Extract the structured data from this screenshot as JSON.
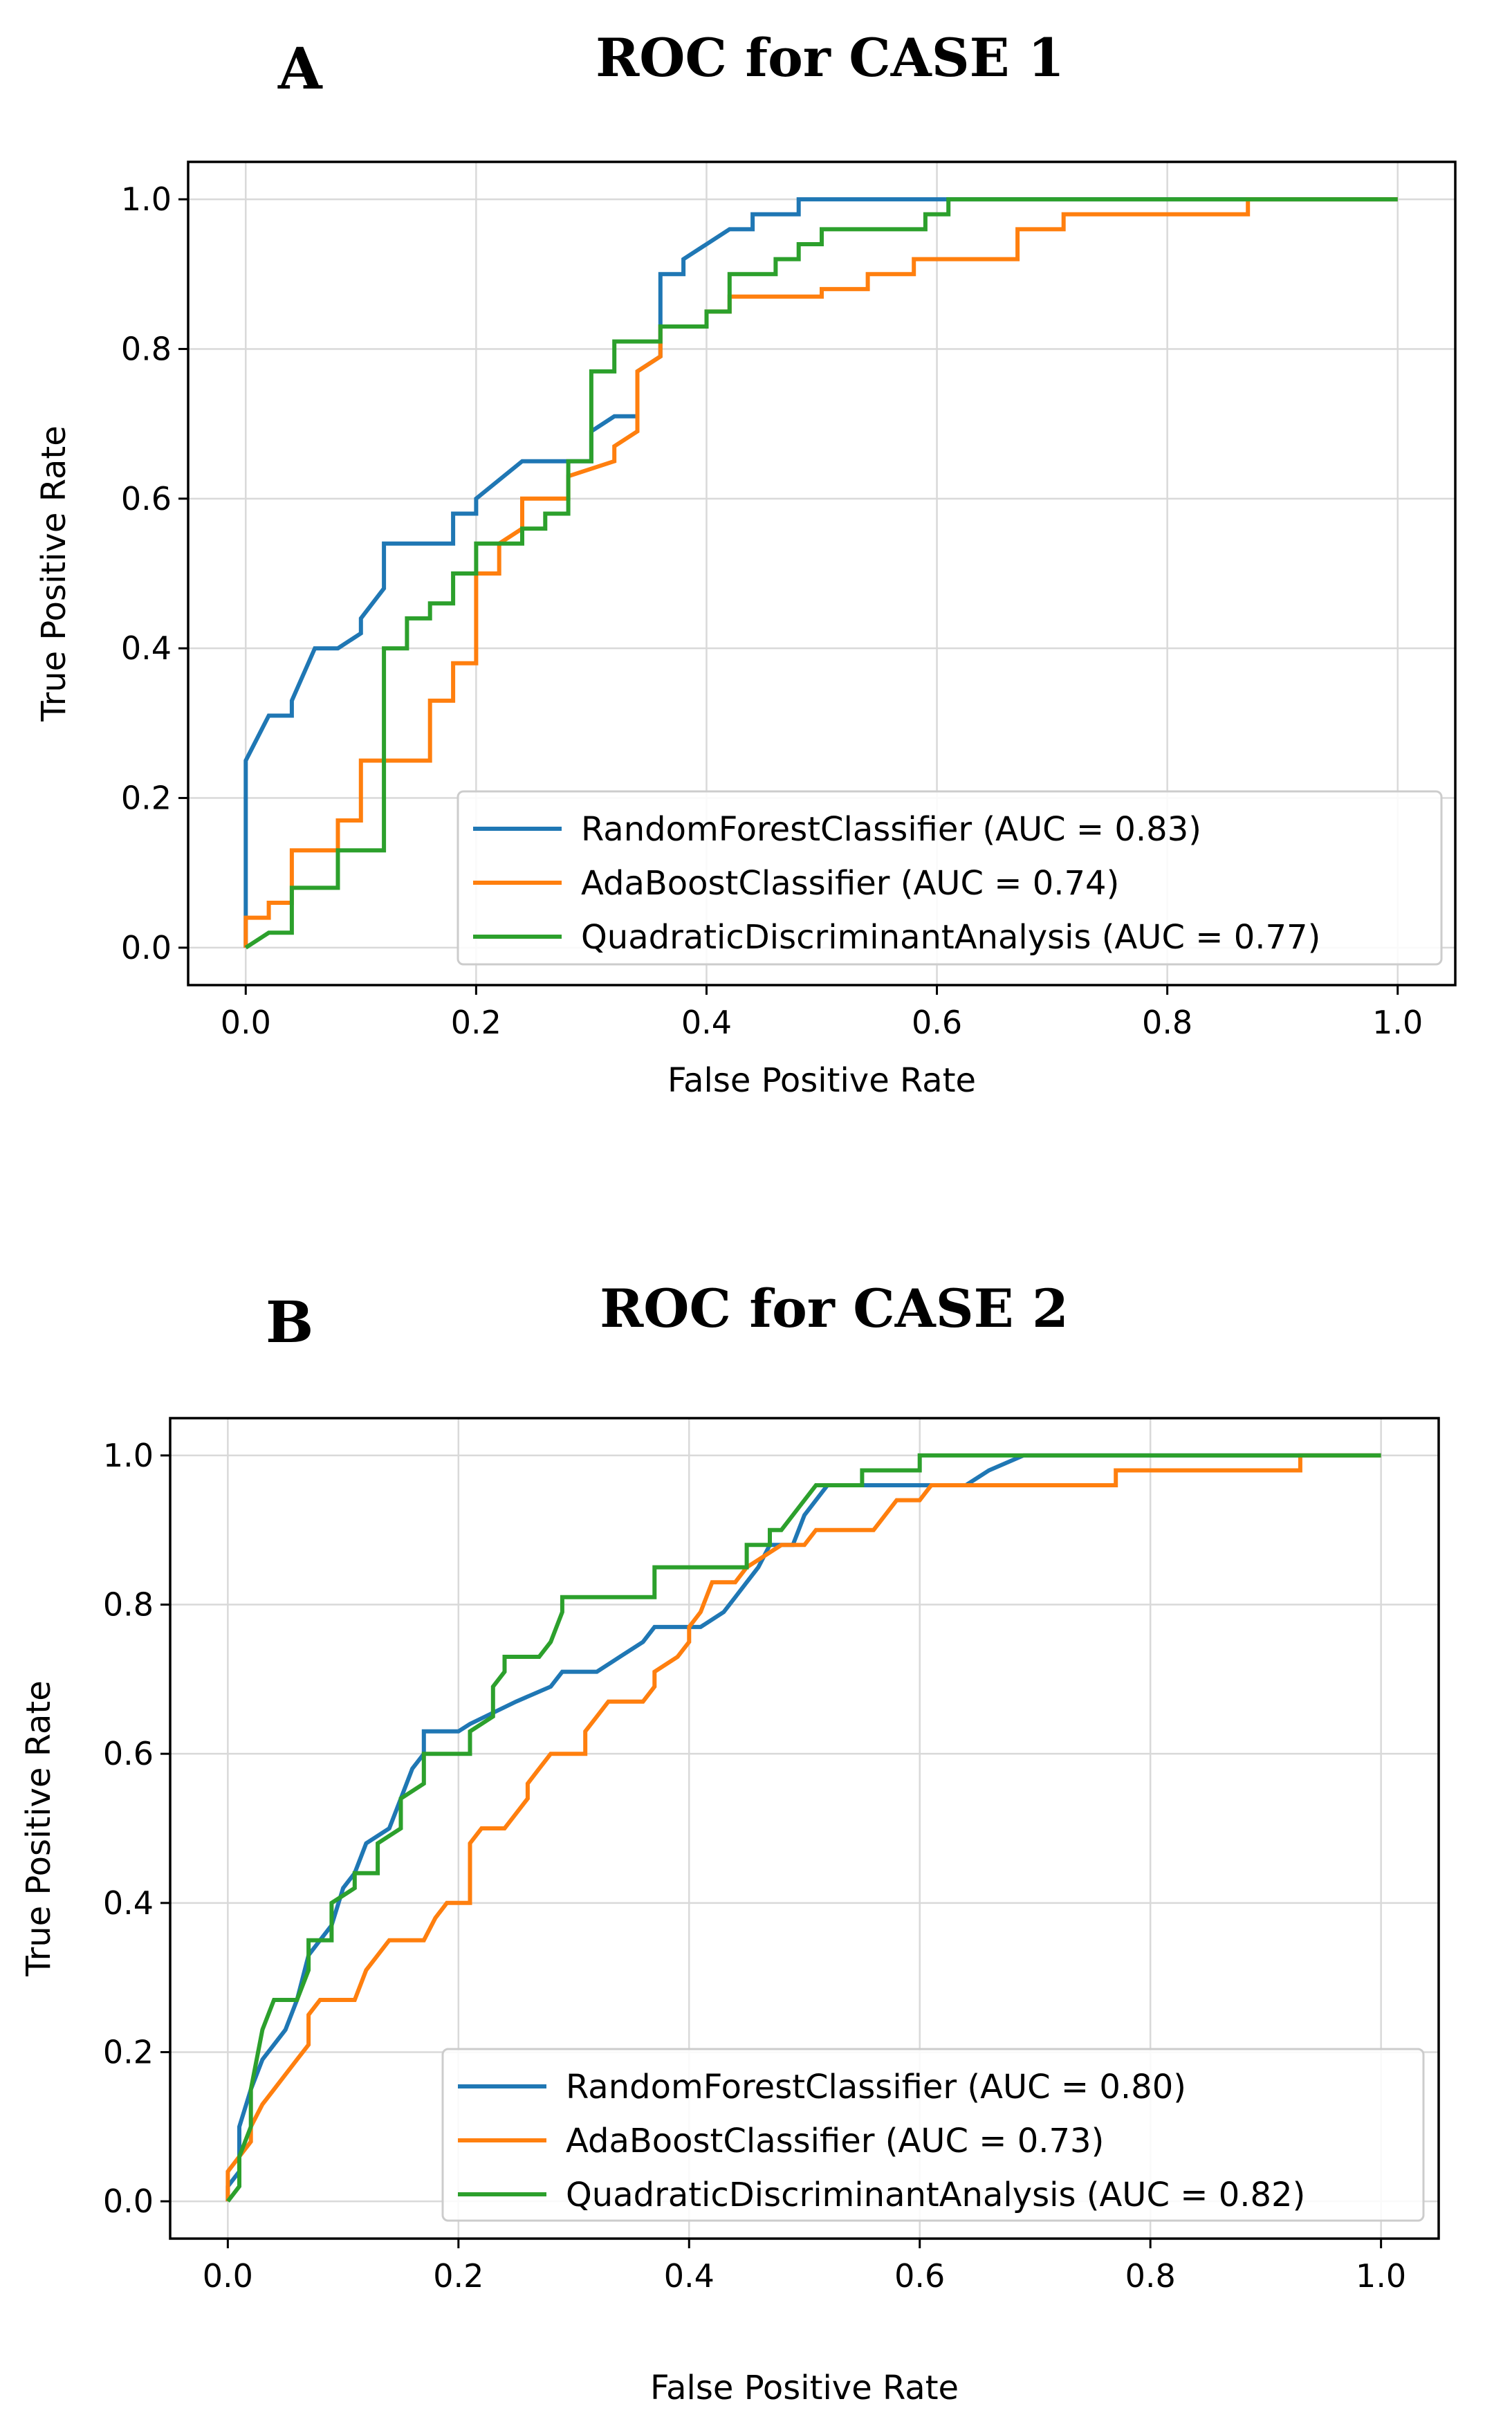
{
  "chart_data": [
    {
      "type": "line",
      "panel_label": "A",
      "title": "ROC for CASE 1",
      "xlabel": "False Positive Rate",
      "ylabel": "True Positive Rate",
      "xlim": [
        -0.05,
        1.05
      ],
      "ylim": [
        -0.05,
        1.05
      ],
      "xticks": [
        "0.0",
        "0.2",
        "0.4",
        "0.6",
        "0.8",
        "1.0"
      ],
      "yticks": [
        "0.0",
        "0.2",
        "0.4",
        "0.6",
        "0.8",
        "1.0"
      ],
      "grid": true,
      "legend_position": "lower-right",
      "series": [
        {
          "name": "RandomForestClassifier (AUC = 0.83)",
          "color": "#1f77b4",
          "points": [
            [
              0,
              0
            ],
            [
              0,
              0.25
            ],
            [
              0.02,
              0.31
            ],
            [
              0.04,
              0.31
            ],
            [
              0.04,
              0.33
            ],
            [
              0.06,
              0.4
            ],
            [
              0.08,
              0.4
            ],
            [
              0.1,
              0.42
            ],
            [
              0.1,
              0.44
            ],
            [
              0.12,
              0.48
            ],
            [
              0.12,
              0.54
            ],
            [
              0.18,
              0.54
            ],
            [
              0.18,
              0.58
            ],
            [
              0.2,
              0.58
            ],
            [
              0.2,
              0.6
            ],
            [
              0.24,
              0.65
            ],
            [
              0.3,
              0.65
            ],
            [
              0.3,
              0.69
            ],
            [
              0.32,
              0.71
            ],
            [
              0.34,
              0.71
            ],
            [
              0.34,
              0.77
            ],
            [
              0.36,
              0.79
            ],
            [
              0.36,
              0.9
            ],
            [
              0.38,
              0.9
            ],
            [
              0.38,
              0.92
            ],
            [
              0.42,
              0.96
            ],
            [
              0.44,
              0.96
            ],
            [
              0.44,
              0.98
            ],
            [
              0.48,
              0.98
            ],
            [
              0.48,
              1.0
            ],
            [
              0.5,
              1.0
            ],
            [
              0.61,
              1.0
            ],
            [
              1.0,
              1.0
            ]
          ]
        },
        {
          "name": "AdaBoostClassifier (AUC = 0.74)",
          "color": "#ff7f0e",
          "points": [
            [
              0,
              0
            ],
            [
              0,
              0.04
            ],
            [
              0.02,
              0.04
            ],
            [
              0.02,
              0.06
            ],
            [
              0.04,
              0.06
            ],
            [
              0.04,
              0.13
            ],
            [
              0.08,
              0.13
            ],
            [
              0.08,
              0.17
            ],
            [
              0.1,
              0.17
            ],
            [
              0.1,
              0.25
            ],
            [
              0.16,
              0.25
            ],
            [
              0.16,
              0.33
            ],
            [
              0.18,
              0.33
            ],
            [
              0.18,
              0.38
            ],
            [
              0.2,
              0.38
            ],
            [
              0.2,
              0.5
            ],
            [
              0.22,
              0.5
            ],
            [
              0.22,
              0.54
            ],
            [
              0.24,
              0.56
            ],
            [
              0.24,
              0.6
            ],
            [
              0.28,
              0.6
            ],
            [
              0.28,
              0.63
            ],
            [
              0.32,
              0.65
            ],
            [
              0.32,
              0.67
            ],
            [
              0.34,
              0.69
            ],
            [
              0.34,
              0.77
            ],
            [
              0.36,
              0.79
            ],
            [
              0.36,
              0.83
            ],
            [
              0.4,
              0.83
            ],
            [
              0.4,
              0.85
            ],
            [
              0.42,
              0.85
            ],
            [
              0.42,
              0.87
            ],
            [
              0.5,
              0.87
            ],
            [
              0.5,
              0.88
            ],
            [
              0.54,
              0.88
            ],
            [
              0.54,
              0.9
            ],
            [
              0.58,
              0.9
            ],
            [
              0.58,
              0.92
            ],
            [
              0.67,
              0.92
            ],
            [
              0.67,
              0.96
            ],
            [
              0.71,
              0.96
            ],
            [
              0.71,
              0.98
            ],
            [
              0.87,
              0.98
            ],
            [
              0.87,
              1.0
            ],
            [
              1.0,
              1.0
            ]
          ]
        },
        {
          "name": "QuadraticDiscriminantAnalysis (AUC = 0.77)",
          "color": "#2ca02c",
          "points": [
            [
              0,
              0
            ],
            [
              0.02,
              0.02
            ],
            [
              0.04,
              0.02
            ],
            [
              0.04,
              0.08
            ],
            [
              0.08,
              0.08
            ],
            [
              0.08,
              0.13
            ],
            [
              0.12,
              0.13
            ],
            [
              0.12,
              0.4
            ],
            [
              0.14,
              0.4
            ],
            [
              0.14,
              0.44
            ],
            [
              0.16,
              0.44
            ],
            [
              0.16,
              0.46
            ],
            [
              0.18,
              0.46
            ],
            [
              0.18,
              0.5
            ],
            [
              0.2,
              0.5
            ],
            [
              0.2,
              0.54
            ],
            [
              0.24,
              0.54
            ],
            [
              0.24,
              0.56
            ],
            [
              0.26,
              0.56
            ],
            [
              0.26,
              0.58
            ],
            [
              0.28,
              0.58
            ],
            [
              0.28,
              0.65
            ],
            [
              0.3,
              0.65
            ],
            [
              0.3,
              0.77
            ],
            [
              0.32,
              0.77
            ],
            [
              0.32,
              0.81
            ],
            [
              0.36,
              0.81
            ],
            [
              0.36,
              0.83
            ],
            [
              0.4,
              0.83
            ],
            [
              0.4,
              0.85
            ],
            [
              0.42,
              0.85
            ],
            [
              0.42,
              0.9
            ],
            [
              0.46,
              0.9
            ],
            [
              0.46,
              0.92
            ],
            [
              0.48,
              0.92
            ],
            [
              0.48,
              0.94
            ],
            [
              0.5,
              0.94
            ],
            [
              0.5,
              0.96
            ],
            [
              0.59,
              0.96
            ],
            [
              0.59,
              0.98
            ],
            [
              0.61,
              0.98
            ],
            [
              0.61,
              1.0
            ],
            [
              1.0,
              1.0
            ]
          ]
        }
      ]
    },
    {
      "type": "line",
      "panel_label": "B",
      "title": "ROC for CASE 2",
      "xlabel": "False Positive Rate",
      "ylabel": "True Positive Rate",
      "xlim": [
        -0.05,
        1.05
      ],
      "ylim": [
        -0.05,
        1.05
      ],
      "xticks": [
        "0.0",
        "0.2",
        "0.4",
        "0.6",
        "0.8",
        "1.0"
      ],
      "yticks": [
        "0.0",
        "0.2",
        "0.4",
        "0.6",
        "0.8",
        "1.0"
      ],
      "grid": true,
      "legend_position": "lower-right",
      "series": [
        {
          "name": "RandomForestClassifier (AUC = 0.80)",
          "color": "#1f77b4",
          "points": [
            [
              0,
              0
            ],
            [
              0,
              0.02
            ],
            [
              0.01,
              0.04
            ],
            [
              0.01,
              0.1
            ],
            [
              0.02,
              0.15
            ],
            [
              0.03,
              0.19
            ],
            [
              0.05,
              0.23
            ],
            [
              0.06,
              0.27
            ],
            [
              0.07,
              0.33
            ],
            [
              0.08,
              0.35
            ],
            [
              0.09,
              0.37
            ],
            [
              0.1,
              0.42
            ],
            [
              0.11,
              0.44
            ],
            [
              0.12,
              0.48
            ],
            [
              0.14,
              0.5
            ],
            [
              0.15,
              0.54
            ],
            [
              0.16,
              0.58
            ],
            [
              0.17,
              0.6
            ],
            [
              0.17,
              0.63
            ],
            [
              0.2,
              0.63
            ],
            [
              0.21,
              0.64
            ],
            [
              0.25,
              0.67
            ],
            [
              0.28,
              0.69
            ],
            [
              0.29,
              0.71
            ],
            [
              0.32,
              0.71
            ],
            [
              0.34,
              0.73
            ],
            [
              0.36,
              0.75
            ],
            [
              0.37,
              0.77
            ],
            [
              0.41,
              0.77
            ],
            [
              0.43,
              0.79
            ],
            [
              0.44,
              0.81
            ],
            [
              0.45,
              0.83
            ],
            [
              0.46,
              0.85
            ],
            [
              0.47,
              0.88
            ],
            [
              0.49,
              0.88
            ],
            [
              0.5,
              0.92
            ],
            [
              0.52,
              0.96
            ],
            [
              0.64,
              0.96
            ],
            [
              0.66,
              0.98
            ],
            [
              0.69,
              1.0
            ],
            [
              1.0,
              1.0
            ]
          ]
        },
        {
          "name": "AdaBoostClassifier (AUC = 0.73)",
          "color": "#ff7f0e",
          "points": [
            [
              0,
              0
            ],
            [
              0,
              0.04
            ],
            [
              0.01,
              0.06
            ],
            [
              0.02,
              0.08
            ],
            [
              0.02,
              0.1
            ],
            [
              0.03,
              0.13
            ],
            [
              0.04,
              0.15
            ],
            [
              0.05,
              0.17
            ],
            [
              0.06,
              0.19
            ],
            [
              0.07,
              0.21
            ],
            [
              0.07,
              0.25
            ],
            [
              0.08,
              0.27
            ],
            [
              0.11,
              0.27
            ],
            [
              0.12,
              0.31
            ],
            [
              0.13,
              0.33
            ],
            [
              0.14,
              0.35
            ],
            [
              0.17,
              0.35
            ],
            [
              0.18,
              0.38
            ],
            [
              0.19,
              0.4
            ],
            [
              0.21,
              0.4
            ],
            [
              0.21,
              0.44
            ],
            [
              0.21,
              0.48
            ],
            [
              0.22,
              0.5
            ],
            [
              0.24,
              0.5
            ],
            [
              0.25,
              0.52
            ],
            [
              0.26,
              0.54
            ],
            [
              0.26,
              0.56
            ],
            [
              0.27,
              0.58
            ],
            [
              0.28,
              0.6
            ],
            [
              0.31,
              0.6
            ],
            [
              0.31,
              0.63
            ],
            [
              0.32,
              0.65
            ],
            [
              0.33,
              0.67
            ],
            [
              0.36,
              0.67
            ],
            [
              0.37,
              0.69
            ],
            [
              0.37,
              0.71
            ],
            [
              0.39,
              0.73
            ],
            [
              0.4,
              0.75
            ],
            [
              0.4,
              0.77
            ],
            [
              0.41,
              0.79
            ],
            [
              0.42,
              0.83
            ],
            [
              0.44,
              0.83
            ],
            [
              0.45,
              0.85
            ],
            [
              0.46,
              0.86
            ],
            [
              0.48,
              0.88
            ],
            [
              0.5,
              0.88
            ],
            [
              0.51,
              0.9
            ],
            [
              0.56,
              0.9
            ],
            [
              0.57,
              0.92
            ],
            [
              0.58,
              0.94
            ],
            [
              0.6,
              0.94
            ],
            [
              0.61,
              0.96
            ],
            [
              0.77,
              0.96
            ],
            [
              0.77,
              0.98
            ],
            [
              0.93,
              0.98
            ],
            [
              0.93,
              1.0
            ],
            [
              1.0,
              1.0
            ]
          ]
        },
        {
          "name": "QuadraticDiscriminantAnalysis (AUC = 0.82)",
          "color": "#2ca02c",
          "points": [
            [
              0,
              0
            ],
            [
              0.01,
              0.02
            ],
            [
              0.01,
              0.06
            ],
            [
              0.02,
              0.1
            ],
            [
              0.02,
              0.15
            ],
            [
              0.03,
              0.23
            ],
            [
              0.04,
              0.27
            ],
            [
              0.06,
              0.27
            ],
            [
              0.07,
              0.31
            ],
            [
              0.07,
              0.35
            ],
            [
              0.09,
              0.35
            ],
            [
              0.09,
              0.4
            ],
            [
              0.11,
              0.42
            ],
            [
              0.11,
              0.44
            ],
            [
              0.13,
              0.44
            ],
            [
              0.13,
              0.48
            ],
            [
              0.15,
              0.5
            ],
            [
              0.15,
              0.54
            ],
            [
              0.17,
              0.56
            ],
            [
              0.17,
              0.6
            ],
            [
              0.21,
              0.6
            ],
            [
              0.21,
              0.63
            ],
            [
              0.23,
              0.65
            ],
            [
              0.23,
              0.69
            ],
            [
              0.24,
              0.71
            ],
            [
              0.24,
              0.73
            ],
            [
              0.27,
              0.73
            ],
            [
              0.28,
              0.75
            ],
            [
              0.29,
              0.79
            ],
            [
              0.29,
              0.81
            ],
            [
              0.37,
              0.81
            ],
            [
              0.37,
              0.85
            ],
            [
              0.45,
              0.85
            ],
            [
              0.45,
              0.88
            ],
            [
              0.47,
              0.88
            ],
            [
              0.47,
              0.9
            ],
            [
              0.48,
              0.9
            ],
            [
              0.49,
              0.92
            ],
            [
              0.5,
              0.94
            ],
            [
              0.51,
              0.96
            ],
            [
              0.55,
              0.96
            ],
            [
              0.55,
              0.98
            ],
            [
              0.6,
              0.98
            ],
            [
              0.6,
              1.0
            ],
            [
              1.0,
              1.0
            ]
          ]
        }
      ]
    }
  ]
}
